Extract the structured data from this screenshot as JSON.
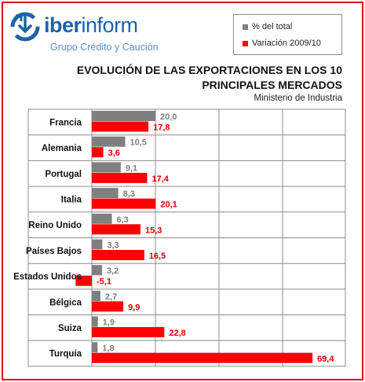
{
  "brand": {
    "name_bold": "iber",
    "name_light": "inform",
    "tagline": "Grupo Crédito y Caución",
    "logo_color": "#1e63a8"
  },
  "chart_data": {
    "type": "bar",
    "orientation": "horizontal",
    "title_line1": "EVOLUCIÓN DE LAS EXPORTACIONES EN LOS 10",
    "title_line2": "PRINCIPALES MERCADOS",
    "source": "Ministerio de Industria",
    "categories": [
      "Francia",
      "Alemania",
      "Portugal",
      "Italia",
      "Reino Unido",
      "Países Bajos",
      "Estados Unidos",
      "Bélgica",
      "Suiza",
      "Turquía"
    ],
    "series": [
      {
        "name": "% del total",
        "color": "#7f7f7f",
        "values": [
          20.0,
          10.5,
          9.1,
          8.3,
          6.3,
          3.3,
          3.2,
          2.7,
          1.9,
          1.8
        ],
        "labels": [
          "20,0",
          "10,5",
          "9,1",
          "8,3",
          "6,3",
          "3,3",
          "3,2",
          "2,7",
          "1,9",
          "1,8"
        ]
      },
      {
        "name": "Variación 2009/10",
        "color": "#ff0000",
        "values": [
          17.8,
          3.6,
          17.4,
          20.1,
          15.3,
          16.5,
          -5.1,
          9.9,
          22.8,
          69.4
        ],
        "labels": [
          "17,8",
          "3,6",
          "17,4",
          "20,1",
          "15,3",
          "16,5",
          "-5,1",
          "9,9",
          "22,8",
          "69,4"
        ]
      }
    ],
    "xlim": [
      -5,
      75
    ],
    "grid": "vertical",
    "legend_position": "top-right",
    "label_colors": {
      "gray": "#7f7f7f",
      "red": "#e00000"
    }
  }
}
